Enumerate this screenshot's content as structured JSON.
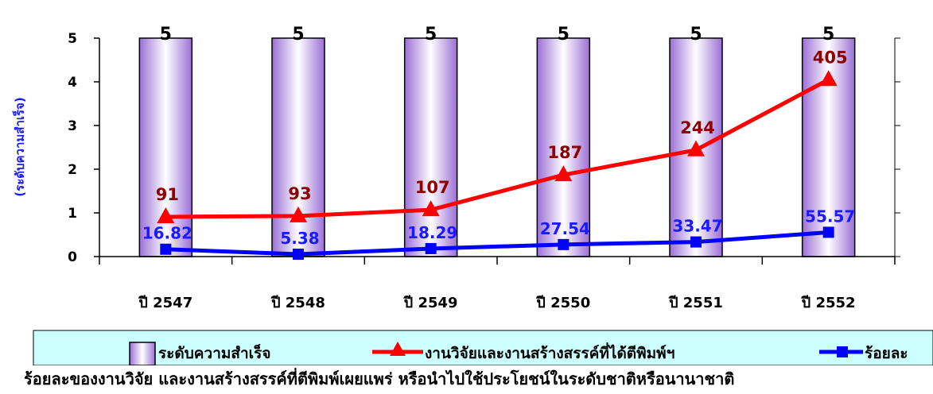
{
  "chart_data": {
    "type": "bar",
    "categories": [
      "ปี 2547",
      "ปี 2548",
      "ปี 2549",
      "ปี 2550",
      "ปี 2551",
      "ปี 2552"
    ],
    "ylabel": "(ระดับความสำเร็จ)",
    "ylim": [
      0,
      5
    ],
    "yticks": [
      "0",
      "1",
      "2",
      "3",
      "4",
      "5"
    ],
    "series": [
      {
        "name": "ระดับความสำเร็จ",
        "kind": "bar",
        "values": [
          5,
          5,
          5,
          5,
          5,
          5
        ],
        "labels": [
          "5",
          "5",
          "5",
          "5",
          "5",
          "5"
        ]
      },
      {
        "name": "งานวิจัยและงานสร้างสรรค์ที่ได้ตีพิมพ์ฯ",
        "kind": "line",
        "marker": "triangle",
        "values": [
          91,
          93,
          107,
          187,
          244,
          405
        ],
        "secondary_axis_max": 500,
        "labels": [
          "91",
          "93",
          "107",
          "187",
          "244",
          "405"
        ]
      },
      {
        "name": "ร้อยละ",
        "kind": "line",
        "marker": "square",
        "values": [
          16.82,
          5.38,
          18.29,
          27.54,
          33.47,
          55.57
        ],
        "secondary_axis_max": 500,
        "labels": [
          "16.82",
          "5.38",
          "18.29",
          "27.54",
          "33.47",
          "55.57"
        ]
      }
    ],
    "grid": false,
    "legend": "bottom",
    "colors": {
      "bar": "#c9a6ee",
      "red": "#ff0000",
      "blue": "#0000ff",
      "red_label": "#8b0000",
      "blue_label": "#1a1aff",
      "legend_bg": "#ccffff"
    }
  },
  "caption": "ร้อยละของงานวิจัย และงานสร้างสรรค์ที่ตีพิมพ์เผยแพร่ หรือนำไปใช้ประโยชน์ในระดับชาติหรือนานาชาติ"
}
